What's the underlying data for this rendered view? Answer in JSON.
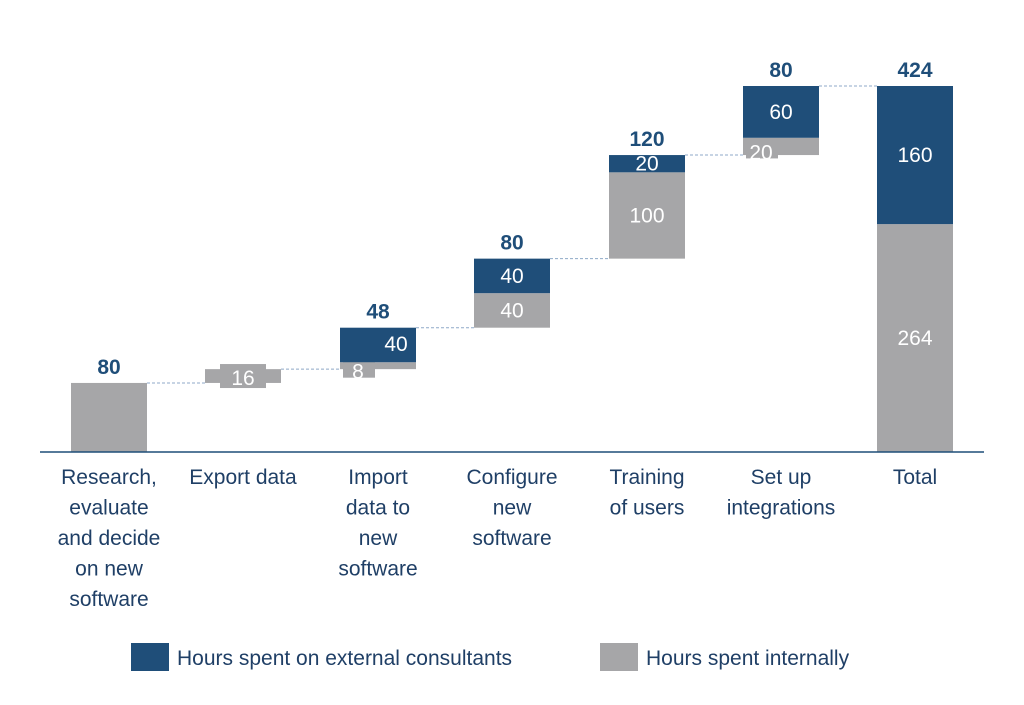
{
  "chart_data": {
    "type": "bar",
    "subtype": "stacked-waterfall",
    "title": "",
    "categories": [
      "Research, evaluate and decide on new software",
      "Export data",
      "Import data to new software",
      "Configure new software",
      "Training of users",
      "Set up integrations",
      "Total"
    ],
    "series": [
      {
        "name": "Hours spent on external consultants",
        "values": [
          0,
          0,
          40,
          40,
          20,
          60,
          160
        ]
      },
      {
        "name": "Hours spent internally",
        "values": [
          80,
          16,
          8,
          40,
          100,
          20,
          264
        ]
      }
    ],
    "bar_totals": [
      80,
      16,
      48,
      80,
      120,
      80,
      424
    ],
    "total_labels": [
      "80",
      "",
      "48",
      "80",
      "120",
      "80",
      "424"
    ],
    "segment_labels": {
      "external": [
        "",
        "",
        "40",
        "40",
        "20",
        "60",
        "160"
      ],
      "internal": [
        "",
        "16",
        "8",
        "40",
        "100",
        "20",
        "264"
      ]
    },
    "ylim": [
      0,
      424
    ],
    "grid": false,
    "legend_position": "bottom",
    "colors": {
      "external": "#1f4e79",
      "internal": "#a6a6a8",
      "text": "#1f3f66",
      "connector": "#8fa9c8",
      "axis": "#1f4e79"
    }
  }
}
